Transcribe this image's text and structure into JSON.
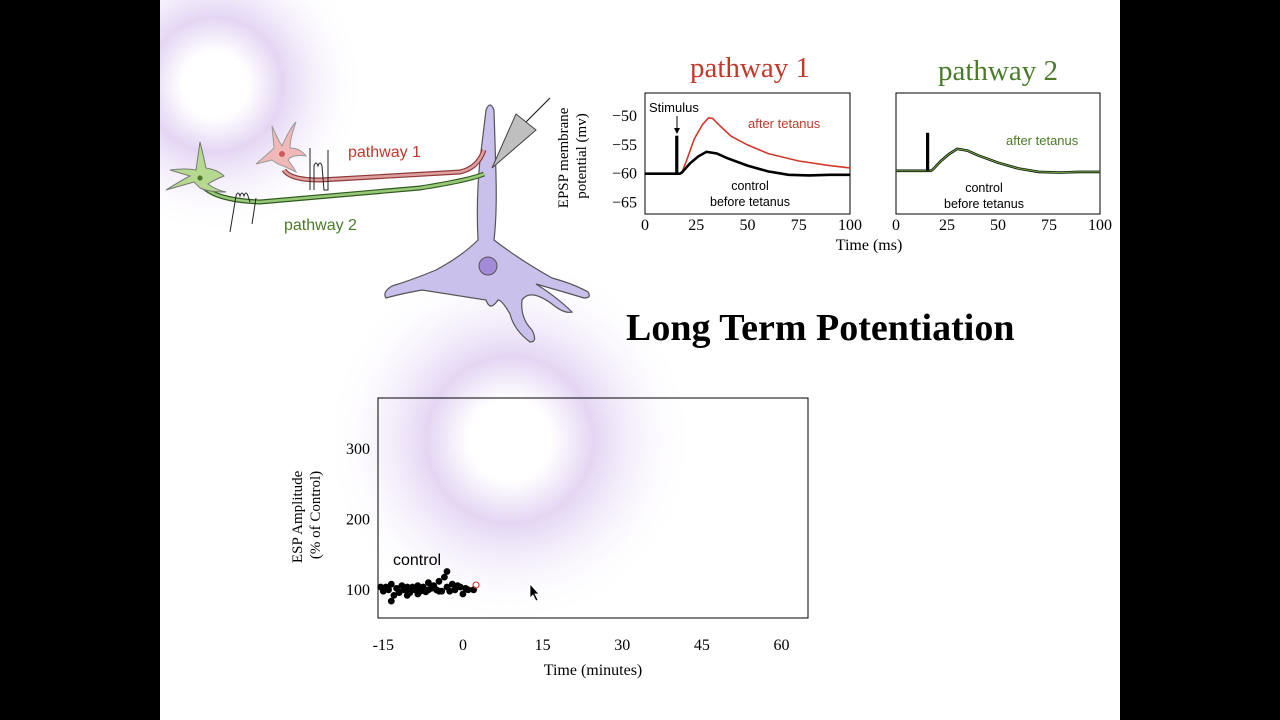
{
  "slide_title": "Long Term Potentiation",
  "neuron_labels": {
    "pathway1": "pathway 1",
    "pathway2": "pathway 2"
  },
  "colors": {
    "pathway1": "#c0392b",
    "pathway2": "#4a7a2a",
    "neuron": "#c9c0ec",
    "control": "#000000"
  },
  "chart_data": [
    {
      "type": "line",
      "title": "pathway 1",
      "ylabel": "EPSP membrane potential (mv)",
      "xlabel": "Time (ms)",
      "xlim": [
        0,
        100
      ],
      "ylim": [
        -67,
        -46
      ],
      "xticks": [
        0,
        25,
        50,
        75,
        100
      ],
      "yticks": [
        -50,
        -55,
        -60,
        -65
      ],
      "annotations": {
        "stimulus": "Stimulus",
        "after": "after tetanus",
        "control_line1": "control",
        "control_line2": "before  tetanus"
      },
      "series": [
        {
          "name": "after tetanus",
          "x": [
            0,
            15,
            16,
            17,
            18,
            20,
            24,
            28,
            31,
            33,
            36,
            42,
            50,
            60,
            75,
            90,
            100
          ],
          "y": [
            -60,
            -60,
            -60,
            -60,
            -59.8,
            -58,
            -54,
            -51.5,
            -50.3,
            -50.4,
            -51.5,
            -53.5,
            -55,
            -56.5,
            -57.8,
            -58.6,
            -59
          ]
        },
        {
          "name": "control before tetanus",
          "x": [
            0,
            15,
            16,
            17,
            18,
            22,
            26,
            30,
            35,
            40,
            50,
            60,
            70,
            80,
            90,
            100
          ],
          "y": [
            -60,
            -60,
            -60,
            -60,
            -59.8,
            -58.2,
            -57,
            -56.2,
            -56.5,
            -57.3,
            -58.6,
            -59.6,
            -60.2,
            -60.3,
            -60.2,
            -60.2
          ]
        }
      ]
    },
    {
      "type": "line",
      "title": "pathway 2",
      "xlim": [
        0,
        100
      ],
      "ylim": [
        -67,
        -46
      ],
      "xticks": [
        0,
        25,
        50,
        75,
        100
      ],
      "annotations": {
        "after": "after tetanus",
        "control_line1": "control",
        "control_line2": "before  tetanus"
      },
      "series": [
        {
          "name": "after tetanus",
          "x": [
            0,
            15,
            16,
            17,
            18,
            22,
            26,
            30,
            35,
            40,
            50,
            60,
            70,
            80,
            90,
            100
          ],
          "y": [
            -59.5,
            -59.5,
            -59.5,
            -59.5,
            -59.3,
            -57.8,
            -56.6,
            -55.7,
            -56,
            -56.8,
            -58.1,
            -59.1,
            -59.7,
            -59.8,
            -59.7,
            -59.7
          ]
        },
        {
          "name": "control before tetanus",
          "x": [
            0,
            15,
            16,
            17,
            18,
            22,
            26,
            30,
            35,
            40,
            50,
            60,
            70,
            80,
            90,
            100
          ],
          "y": [
            -59.5,
            -59.5,
            -59.5,
            -59.5,
            -59.3,
            -57.8,
            -56.6,
            -55.7,
            -56,
            -56.8,
            -58.1,
            -59.1,
            -59.7,
            -59.8,
            -59.7,
            -59.7
          ]
        }
      ]
    },
    {
      "type": "scatter",
      "xlabel": "Time (minutes)",
      "ylabel": "ESP Amplitude (% of Control)",
      "xlim": [
        -16,
        65
      ],
      "ylim": [
        60,
        372
      ],
      "xticks": [
        -15,
        0,
        15,
        30,
        45,
        60
      ],
      "yticks": [
        100,
        200,
        300
      ],
      "annotation": "control",
      "series": [
        {
          "name": "control",
          "x": [
            -15.5,
            -15,
            -14.5,
            -14,
            -13.5,
            -13,
            -12.5,
            -12,
            -11.5,
            -11,
            -10.5,
            -10,
            -9.5,
            -9,
            -8.5,
            -8,
            -7.5,
            -7,
            -6.5,
            -6,
            -5.5,
            -5,
            -4.5,
            -4,
            -3.5,
            -3,
            -2.5,
            -2,
            -1.5,
            -1,
            -0.5,
            0,
            0.5,
            1,
            2,
            -13.5,
            -12,
            -10.5,
            -8.5,
            -6.5,
            -4.5,
            -3
          ],
          "y": [
            104,
            98,
            104,
            100,
            108,
            92,
            102,
            97,
            106,
            100,
            104,
            96,
            104,
            100,
            106,
            98,
            104,
            97,
            110,
            102,
            106,
            100,
            112,
            98,
            118,
            104,
            98,
            108,
            100,
            106,
            104,
            94,
            102,
            100,
            100,
            84,
            96,
            92,
            94,
            100,
            98,
            126
          ]
        }
      ]
    }
  ]
}
